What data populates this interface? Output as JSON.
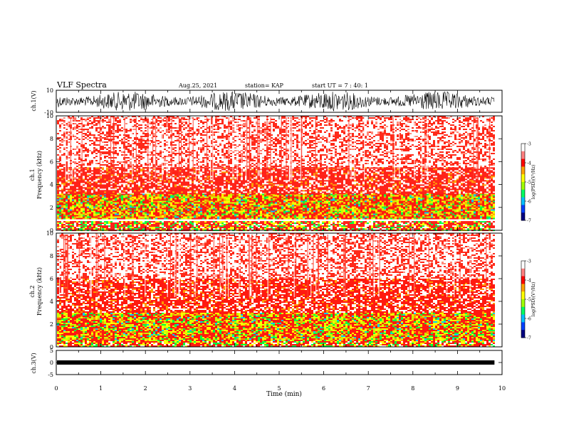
{
  "header": {
    "title": "VLF Spectra",
    "date": "Aug.25, 2021",
    "station": "station= KAP",
    "start": "start  UT  =   7 : 40: 1"
  },
  "chart_data": [
    {
      "type": "line",
      "name": "ch1-waveform",
      "ylabel": "ch.1(V)",
      "ylim": [
        -10,
        10
      ],
      "yticks": [
        "10",
        "-10"
      ],
      "xlim": [
        0,
        10
      ],
      "description_hidden": "dense noisy waveform roughly between -8 and 8 V"
    },
    {
      "type": "heatmap",
      "name": "ch1-spectrogram",
      "ylabel": "ch.1\nFrequency (kHz)",
      "ylim": [
        0,
        10
      ],
      "yticks": [
        "0",
        "2",
        "4",
        "6",
        "8",
        "10"
      ],
      "xlim": [
        0,
        10
      ],
      "colorbar": {
        "label": "log(PSD)(V²/Hz)",
        "range": [
          -7,
          -3
        ],
        "ticks": [
          "-3",
          "-4",
          "-5",
          "-6",
          "-7"
        ]
      },
      "bands": [
        {
          "fmin": 0.0,
          "fmax": 0.8,
          "level": "mixed"
        },
        {
          "fmin": 1.0,
          "fmax": 3.2,
          "level": "high"
        },
        {
          "fmin": 3.2,
          "fmax": 5.5,
          "level": "medium"
        },
        {
          "fmin": 5.5,
          "fmax": 10.0,
          "level": "low"
        }
      ]
    },
    {
      "type": "heatmap",
      "name": "ch2-spectrogram",
      "ylabel": "ch.2\nFrequency (kHz)",
      "ylim": [
        0,
        10
      ],
      "yticks": [
        "0",
        "2",
        "4",
        "6",
        "8",
        "10"
      ],
      "xlim": [
        0,
        10
      ],
      "colorbar": {
        "label": "log(PSD)(V²/Hz)",
        "range": [
          -7,
          -3
        ],
        "ticks": [
          "-3",
          "-4",
          "-5",
          "-6",
          "-7"
        ]
      },
      "bands": [
        {
          "fmin": 0.0,
          "fmax": 0.5,
          "level": "mixed"
        },
        {
          "fmin": 0.5,
          "fmax": 3.0,
          "level": "high"
        },
        {
          "fmin": 3.0,
          "fmax": 6.0,
          "level": "medium"
        },
        {
          "fmin": 6.0,
          "fmax": 10.0,
          "level": "low"
        }
      ]
    },
    {
      "type": "line",
      "name": "ch3-waveform",
      "ylabel": "ch.3(V)",
      "ylim": [
        -5,
        5
      ],
      "yticks": [
        "5",
        "0",
        "-5"
      ],
      "xlim": [
        0,
        10
      ],
      "xlabel": "Time  (min)",
      "xticks": [
        "0",
        "1",
        "2",
        "3",
        "4",
        "5",
        "6",
        "7",
        "8",
        "9",
        "10"
      ]
    }
  ],
  "colors": {
    "colormap": [
      "#000080",
      "#0000ff",
      "#00c8ff",
      "#00ff40",
      "#c8ff00",
      "#ffff00",
      "#ff0000",
      "#ffffff"
    ],
    "trace": "#000000"
  }
}
